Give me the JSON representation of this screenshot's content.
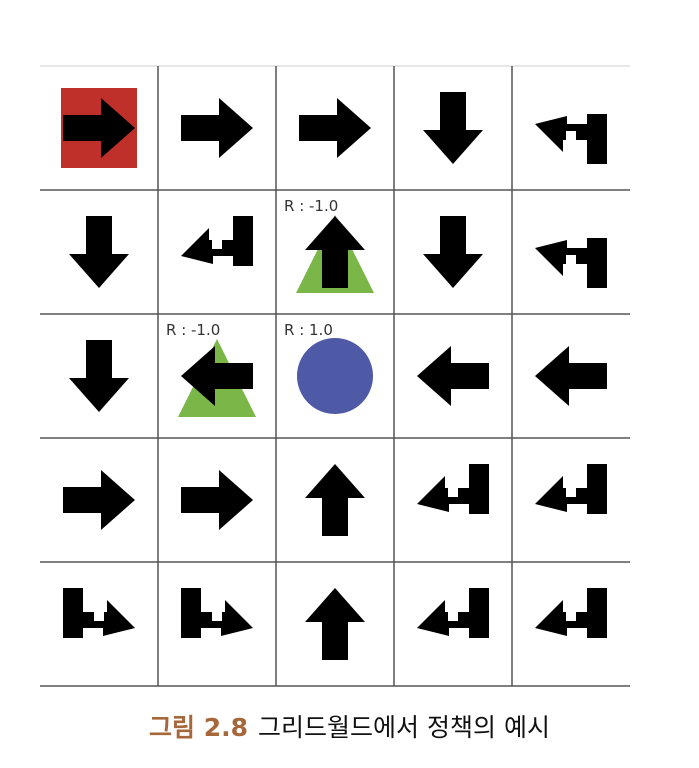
{
  "figure": {
    "cells": [
      [
        {
          "a": "right",
          "agent": true
        },
        {
          "a": "right"
        },
        {
          "a": "right"
        },
        {
          "a": "down"
        },
        {
          "a": "down-left"
        }
      ],
      [
        {
          "a": "down"
        },
        {
          "a": "up-left"
        },
        {
          "a": "up",
          "tri": true,
          "label": "R : -1.0"
        },
        {
          "a": "down"
        },
        {
          "a": "down-left"
        }
      ],
      [
        {
          "a": "down"
        },
        {
          "a": "left",
          "tri": true,
          "label": "R : -1.0"
        },
        {
          "a": "none",
          "goal": true,
          "label": "R : 1.0"
        },
        {
          "a": "left"
        },
        {
          "a": "left"
        }
      ],
      [
        {
          "a": "right"
        },
        {
          "a": "right"
        },
        {
          "a": "up"
        },
        {
          "a": "up-left"
        },
        {
          "a": "up-left"
        }
      ],
      [
        {
          "a": "up-right"
        },
        {
          "a": "up-right"
        },
        {
          "a": "up"
        },
        {
          "a": "up-left"
        },
        {
          "a": "up-left"
        }
      ]
    ],
    "colors": {
      "agent": "#c0302b",
      "penalty": "#7ab648",
      "goal": "#4e5aa6",
      "grid": "#555555",
      "arrow": "#000000"
    }
  },
  "caption": {
    "number": "그림 2.8",
    "text": "그리드월드에서 정책의 예시"
  }
}
